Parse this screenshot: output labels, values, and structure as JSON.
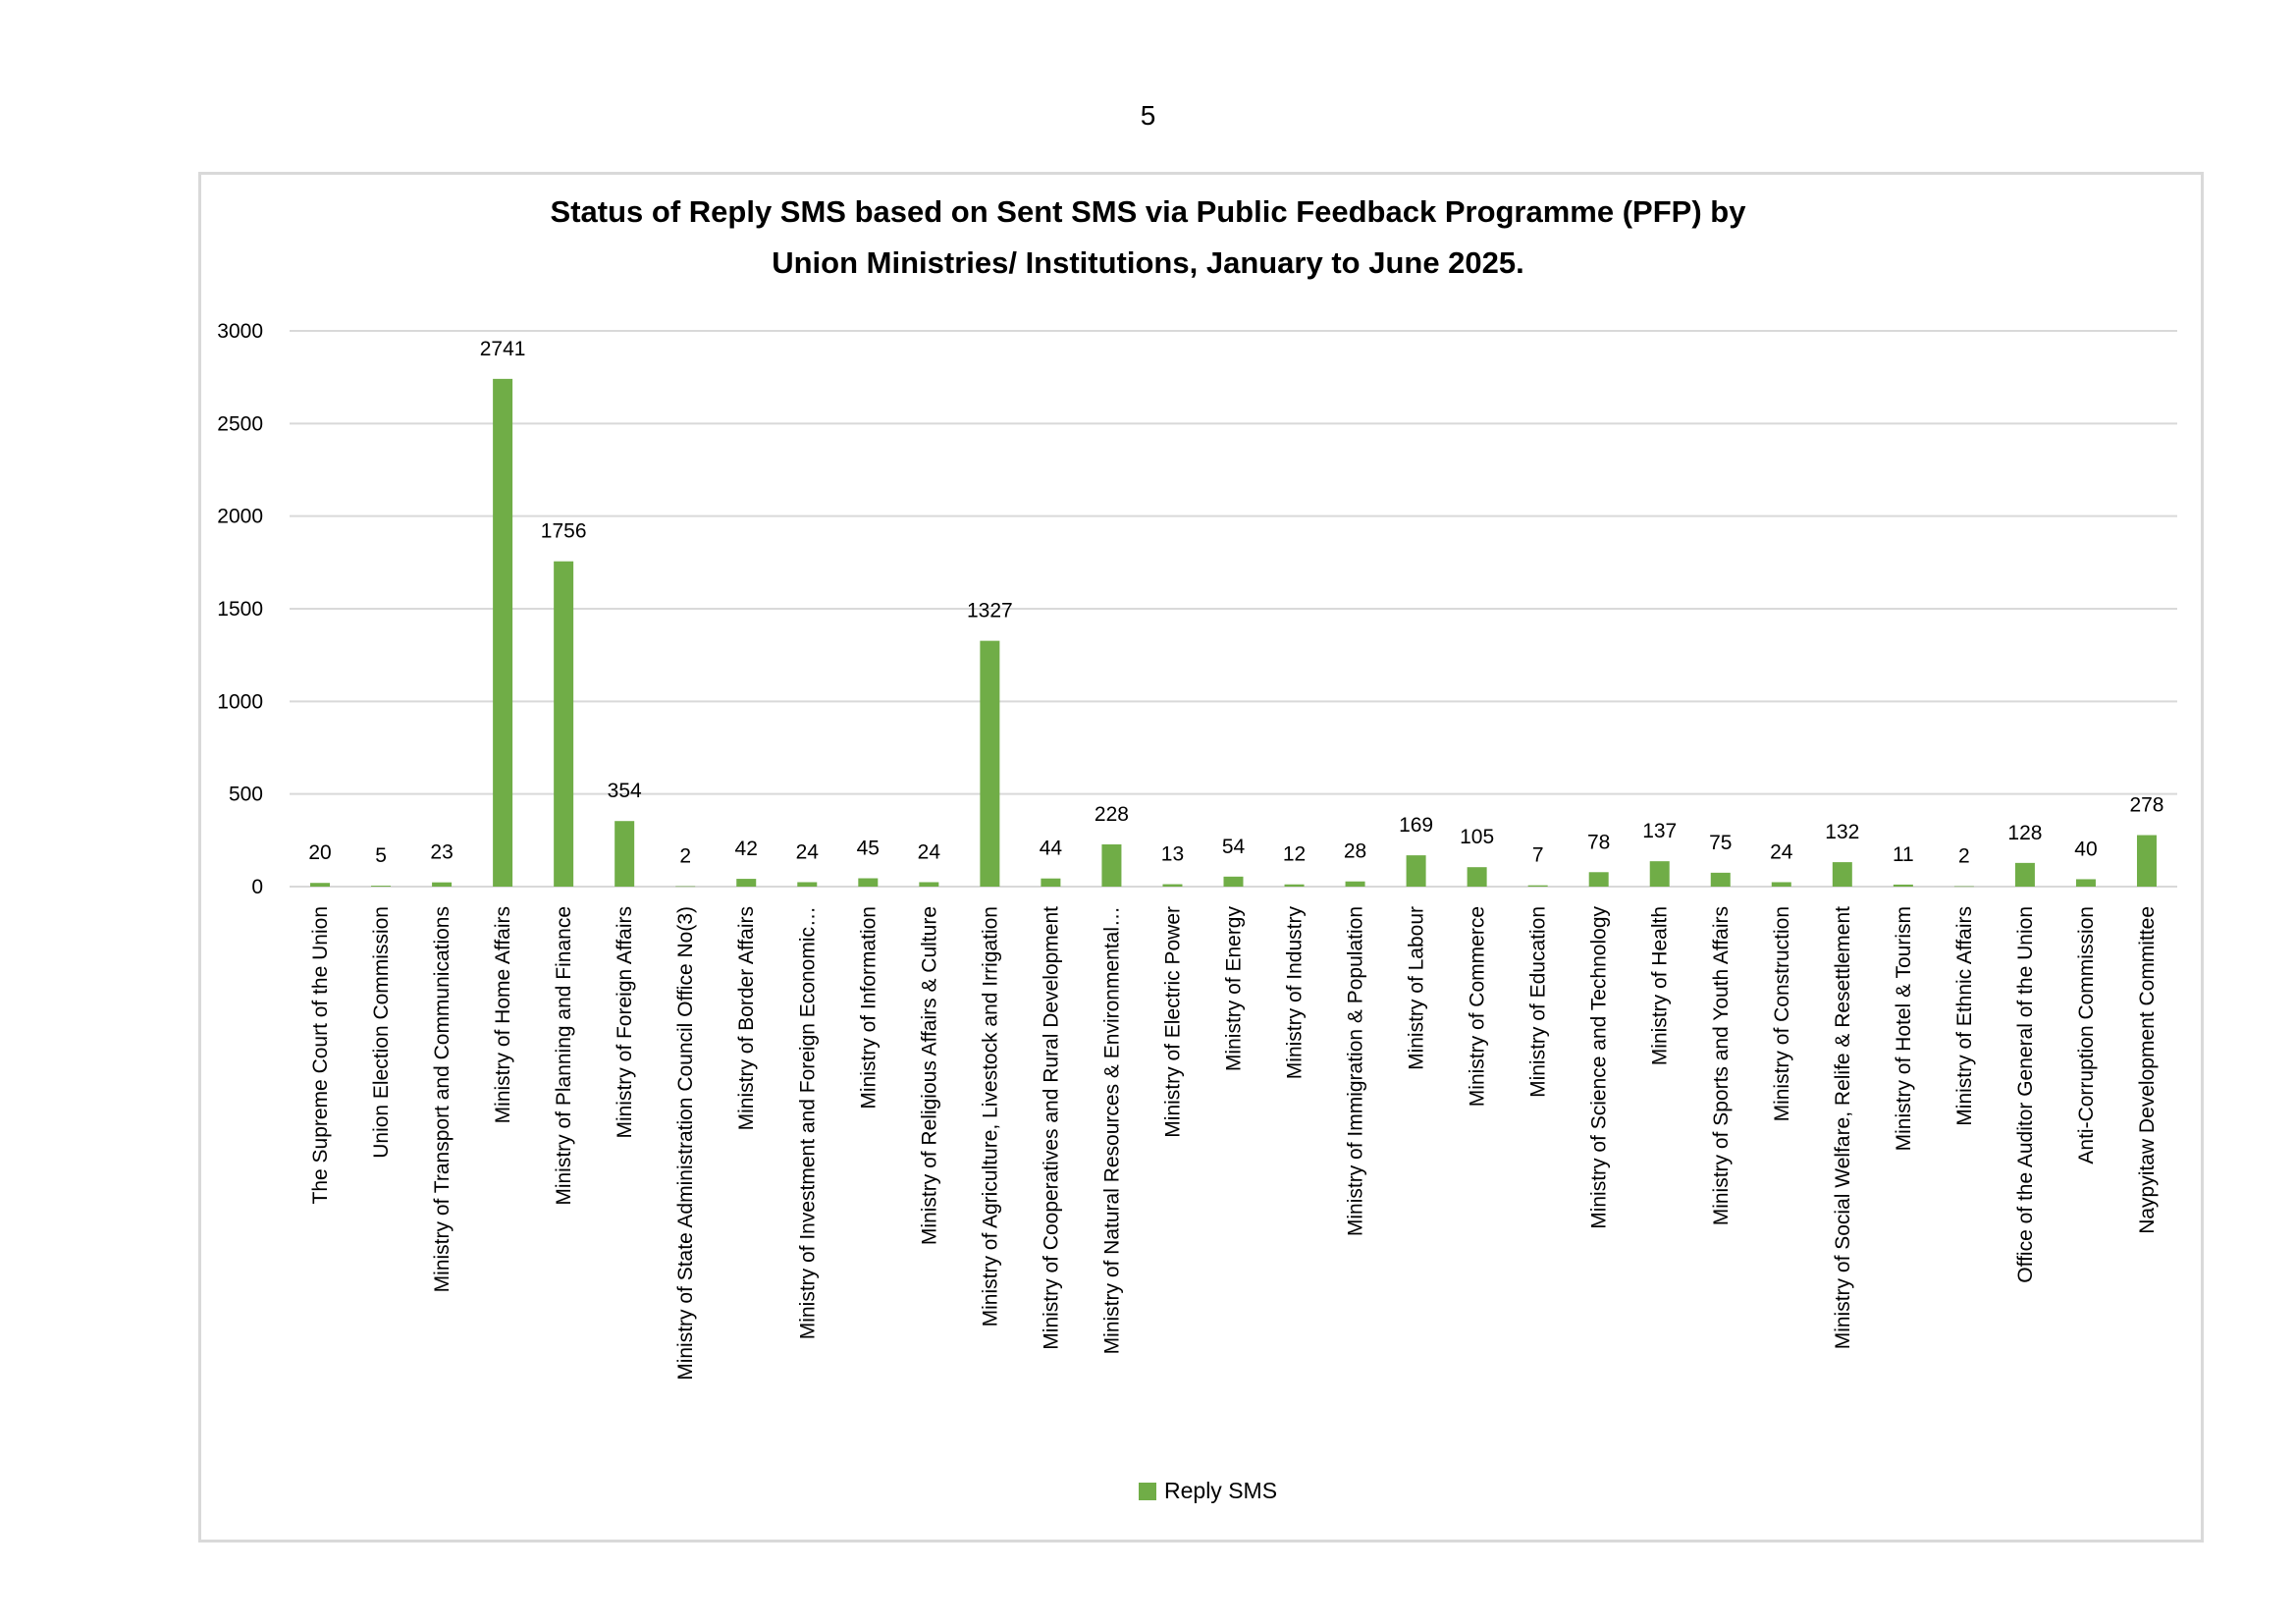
{
  "page": {
    "number": "5"
  },
  "chart_data": {
    "type": "bar",
    "title_line_1": "Status of Reply SMS based on Sent SMS via Public Feedback Programme (PFP) by",
    "title_line_2": "Union Ministries/ Institutions, January to June 2025.",
    "xlabel": "",
    "ylabel": "",
    "ylim": [
      0,
      3000
    ],
    "yticks": [
      "0",
      "500",
      "1000",
      "1500",
      "2000",
      "2500",
      "3000"
    ],
    "grid": true,
    "legend_position": "bottom",
    "bar_color": "#70ad47",
    "grid_color": "#d9d9d9",
    "categories": [
      "The Supreme Court of the Union",
      "Union Election Commission",
      "Ministry of Transport and Communications",
      "Ministry of Home Affairs",
      "Ministry of Planning and Finance",
      "Ministry of Foreign Affairs",
      "Ministry of State Administration Council Office No(3)",
      "Ministry of Border Affairs",
      "Ministry of Investment and Foreign Economic…",
      "Ministry of Information",
      "Ministry of Religious Affairs & Culture",
      "Ministry of Agriculture, Livestock and Irrigation",
      "Ministry of Cooperatives and Rural Development",
      "Ministry of Natural Resources & Environmental…",
      "Ministry of Electric Power",
      "Ministry of Energy",
      "Ministry of Industry",
      "Ministry of Immigration & Population",
      "Ministry of Labour",
      "Ministry of Commerce",
      "Ministry of Education",
      "Ministry of Science and Technology",
      "Ministry of Health",
      "Ministry of Sports and Youth Affairs",
      "Ministry of Construction",
      "Ministry of Social Welfare, Relife & Resettlement",
      "Ministry of Hotel & Tourism",
      "Ministry of Ethnic Affairs",
      "Office of the Auditor General of the Union",
      "Anti-Corruption Commission",
      "Naypyitaw Development Committee"
    ],
    "series": [
      {
        "name": "Reply SMS",
        "values": [
          20,
          5,
          23,
          2741,
          1756,
          354,
          2,
          42,
          24,
          45,
          24,
          1327,
          44,
          228,
          13,
          54,
          12,
          28,
          169,
          105,
          7,
          78,
          137,
          75,
          24,
          132,
          11,
          2,
          128,
          40,
          278
        ]
      }
    ]
  }
}
